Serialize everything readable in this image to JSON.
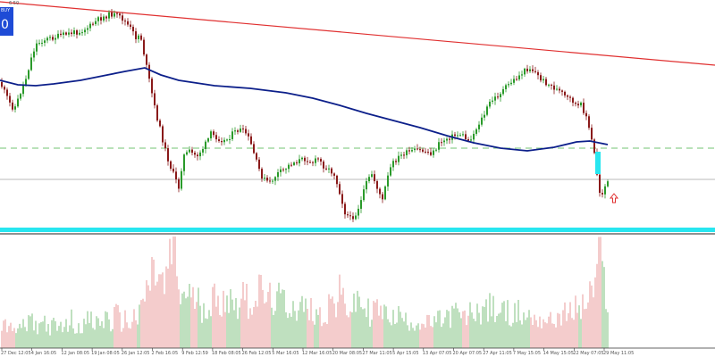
{
  "header": {
    "price_label": "6.50"
  },
  "trade_panel": {
    "label": "BUY",
    "value": "0"
  },
  "colors": {
    "bull": "#2a9a2a",
    "bear": "#8a1a1a",
    "trendline": "#e03030",
    "moving_average": "#0c1f8a",
    "dashed_level": "#8fcf8f",
    "flat_level": "#a0a0a0",
    "support_band": "#28e6f0",
    "volume_up": "#7fc07f",
    "volume_down": "#e89a9a",
    "arrow": "#e03030"
  },
  "icons": {
    "signal_arrow": "up-arrow-icon"
  },
  "chart_data": {
    "type": "candlestick",
    "title": "",
    "xlabel": "",
    "ylabel": "",
    "grid": false,
    "legend": "none",
    "x_tick_labels": [
      "27 Dec 12:05",
      "4 Jan 16:05",
      "12 Jan 08:05",
      "19 Jan 08:05",
      "26 Jan 12:05",
      "2 Feb 16:05",
      "9 Feb 12:59",
      "18 Feb 08:05",
      "26 Feb 12:05",
      "5 Mar 16:05",
      "12 Mar 16:05",
      "20 Mar 08:05",
      "27 Mar 11:05",
      "5 Apr 15:05",
      "13 Apr 07:05",
      "20 Apr 07:05",
      "27 Apr 11:05",
      "7 May 15:05",
      "14 May 15:05",
      "22 May 07:05",
      "29 May 11:05"
    ],
    "price_path": [
      [
        0,
        92
      ],
      [
        6,
        105
      ],
      [
        12,
        118
      ],
      [
        16,
        122
      ],
      [
        20,
        112
      ],
      [
        26,
        95
      ],
      [
        30,
        85
      ],
      [
        34,
        68
      ],
      [
        40,
        50
      ],
      [
        48,
        45
      ],
      [
        60,
        42
      ],
      [
        75,
        38
      ],
      [
        90,
        35
      ],
      [
        100,
        30
      ],
      [
        110,
        22
      ],
      [
        118,
        18
      ],
      [
        125,
        16
      ],
      [
        132,
        18
      ],
      [
        138,
        22
      ],
      [
        146,
        32
      ],
      [
        152,
        42
      ],
      [
        157,
        38
      ],
      [
        162,
        65
      ],
      [
        168,
        95
      ],
      [
        174,
        125
      ],
      [
        178,
        140
      ],
      [
        184,
        165
      ],
      [
        190,
        185
      ],
      [
        196,
        200
      ],
      [
        200,
        210
      ],
      [
        205,
        175
      ],
      [
        212,
        170
      ],
      [
        220,
        175
      ],
      [
        228,
        165
      ],
      [
        236,
        150
      ],
      [
        244,
        155
      ],
      [
        252,
        158
      ],
      [
        260,
        150
      ],
      [
        268,
        145
      ],
      [
        276,
        150
      ],
      [
        282,
        165
      ],
      [
        288,
        185
      ],
      [
        294,
        200
      ],
      [
        302,
        205
      ],
      [
        310,
        195
      ],
      [
        318,
        190
      ],
      [
        326,
        183
      ],
      [
        334,
        180
      ],
      [
        342,
        178
      ],
      [
        350,
        182
      ],
      [
        356,
        178
      ],
      [
        362,
        186
      ],
      [
        368,
        190
      ],
      [
        374,
        195
      ],
      [
        380,
        215
      ],
      [
        386,
        238
      ],
      [
        392,
        245
      ],
      [
        398,
        240
      ],
      [
        404,
        225
      ],
      [
        410,
        205
      ],
      [
        416,
        195
      ],
      [
        422,
        210
      ],
      [
        428,
        225
      ],
      [
        432,
        205
      ],
      [
        438,
        185
      ],
      [
        444,
        178
      ],
      [
        452,
        172
      ],
      [
        460,
        170
      ],
      [
        468,
        168
      ],
      [
        476,
        170
      ],
      [
        484,
        172
      ],
      [
        492,
        160
      ],
      [
        500,
        155
      ],
      [
        508,
        152
      ],
      [
        516,
        150
      ],
      [
        524,
        158
      ],
      [
        530,
        150
      ],
      [
        536,
        138
      ],
      [
        542,
        128
      ],
      [
        548,
        115
      ],
      [
        556,
        108
      ],
      [
        564,
        100
      ],
      [
        572,
        92
      ],
      [
        580,
        86
      ],
      [
        586,
        80
      ],
      [
        592,
        76
      ],
      [
        598,
        80
      ],
      [
        604,
        88
      ],
      [
        610,
        92
      ],
      [
        616,
        96
      ],
      [
        622,
        100
      ],
      [
        628,
        104
      ],
      [
        634,
        110
      ],
      [
        640,
        112
      ],
      [
        646,
        120
      ],
      [
        650,
        118
      ],
      [
        656,
        130
      ],
      [
        660,
        150
      ],
      [
        664,
        165
      ],
      [
        668,
        195
      ],
      [
        672,
        222
      ],
      [
        676,
        210
      ],
      [
        680,
        205
      ]
    ],
    "moving_average": [
      [
        0,
        90
      ],
      [
        20,
        95
      ],
      [
        40,
        96
      ],
      [
        60,
        94
      ],
      [
        90,
        90
      ],
      [
        120,
        84
      ],
      [
        140,
        80
      ],
      [
        162,
        76
      ],
      [
        180,
        84
      ],
      [
        200,
        90
      ],
      [
        240,
        96
      ],
      [
        280,
        99
      ],
      [
        320,
        104
      ],
      [
        350,
        110
      ],
      [
        380,
        118
      ],
      [
        410,
        127
      ],
      [
        440,
        135
      ],
      [
        470,
        143
      ],
      [
        500,
        152
      ],
      [
        530,
        160
      ],
      [
        560,
        166
      ],
      [
        590,
        169
      ],
      [
        620,
        165
      ],
      [
        645,
        159
      ],
      [
        660,
        158
      ],
      [
        680,
        162
      ]
    ],
    "volume": [
      [
        0,
        20
      ],
      [
        5,
        36
      ],
      [
        10,
        22
      ],
      [
        15,
        28
      ],
      [
        20,
        18
      ],
      [
        25,
        32
      ],
      [
        30,
        24
      ],
      [
        35,
        38
      ],
      [
        40,
        26
      ],
      [
        45,
        30
      ],
      [
        50,
        34
      ],
      [
        55,
        24
      ],
      [
        60,
        28
      ],
      [
        65,
        22
      ],
      [
        70,
        32
      ],
      [
        75,
        26
      ],
      [
        80,
        36
      ],
      [
        85,
        24
      ],
      [
        90,
        30
      ],
      [
        95,
        28
      ],
      [
        100,
        38
      ],
      [
        105,
        26
      ],
      [
        110,
        34
      ],
      [
        115,
        30
      ],
      [
        120,
        42
      ],
      [
        125,
        26
      ],
      [
        130,
        46
      ],
      [
        135,
        30
      ],
      [
        140,
        36
      ],
      [
        145,
        28
      ],
      [
        150,
        40
      ],
      [
        155,
        34
      ],
      [
        160,
        60
      ],
      [
        165,
        72
      ],
      [
        170,
        90
      ],
      [
        175,
        95
      ],
      [
        180,
        82
      ],
      [
        185,
        70
      ],
      [
        190,
        118
      ],
      [
        195,
        130
      ],
      [
        200,
        72
      ],
      [
        205,
        60
      ],
      [
        210,
        75
      ],
      [
        215,
        55
      ],
      [
        220,
        66
      ],
      [
        225,
        48
      ],
      [
        230,
        58
      ],
      [
        235,
        50
      ],
      [
        240,
        64
      ],
      [
        245,
        46
      ],
      [
        250,
        70
      ],
      [
        255,
        58
      ],
      [
        260,
        62
      ],
      [
        265,
        52
      ],
      [
        270,
        74
      ],
      [
        275,
        60
      ],
      [
        280,
        56
      ],
      [
        285,
        64
      ],
      [
        290,
        70
      ],
      [
        295,
        66
      ],
      [
        300,
        58
      ],
      [
        305,
        62
      ],
      [
        310,
        54
      ],
      [
        315,
        66
      ],
      [
        320,
        48
      ],
      [
        325,
        58
      ],
      [
        330,
        52
      ],
      [
        335,
        46
      ],
      [
        340,
        56
      ],
      [
        345,
        40
      ],
      [
        350,
        50
      ],
      [
        355,
        44
      ],
      [
        360,
        38
      ],
      [
        365,
        44
      ],
      [
        370,
        62
      ],
      [
        375,
        50
      ],
      [
        380,
        66
      ],
      [
        385,
        58
      ],
      [
        390,
        50
      ],
      [
        395,
        46
      ],
      [
        400,
        62
      ],
      [
        405,
        54
      ],
      [
        410,
        48
      ],
      [
        415,
        42
      ],
      [
        420,
        52
      ],
      [
        425,
        46
      ],
      [
        430,
        40
      ],
      [
        435,
        48
      ],
      [
        440,
        36
      ],
      [
        445,
        42
      ],
      [
        450,
        38
      ],
      [
        455,
        32
      ],
      [
        460,
        36
      ],
      [
        465,
        30
      ],
      [
        470,
        34
      ],
      [
        475,
        28
      ],
      [
        480,
        32
      ],
      [
        485,
        30
      ],
      [
        490,
        34
      ],
      [
        495,
        36
      ],
      [
        500,
        38
      ],
      [
        505,
        40
      ],
      [
        510,
        44
      ],
      [
        515,
        40
      ],
      [
        520,
        36
      ],
      [
        525,
        42
      ],
      [
        530,
        46
      ],
      [
        535,
        44
      ],
      [
        540,
        50
      ],
      [
        545,
        46
      ],
      [
        550,
        52
      ],
      [
        555,
        44
      ],
      [
        560,
        48
      ],
      [
        565,
        42
      ],
      [
        570,
        46
      ],
      [
        575,
        40
      ],
      [
        580,
        44
      ],
      [
        585,
        38
      ],
      [
        590,
        42
      ],
      [
        595,
        36
      ],
      [
        600,
        40
      ],
      [
        605,
        34
      ],
      [
        610,
        38
      ],
      [
        615,
        32
      ],
      [
        620,
        36
      ],
      [
        625,
        40
      ],
      [
        630,
        44
      ],
      [
        635,
        38
      ],
      [
        640,
        46
      ],
      [
        645,
        52
      ],
      [
        650,
        48
      ],
      [
        655,
        56
      ],
      [
        660,
        64
      ],
      [
        665,
        78
      ],
      [
        668,
        95
      ],
      [
        672,
        110
      ],
      [
        676,
        82
      ],
      [
        680,
        60
      ]
    ],
    "annotations": [
      {
        "type": "trendline",
        "from": [
          0,
          2
        ],
        "to": [
          800,
          73
        ]
      },
      {
        "type": "dashed_level",
        "y": 166
      },
      {
        "type": "flat_level",
        "y": 201
      },
      {
        "type": "support_band",
        "y": 258
      },
      {
        "type": "highlight_bar",
        "x": 669,
        "y_top": 170,
        "y_bottom": 195
      },
      {
        "type": "arrow_up",
        "x": 687,
        "y": 222
      }
    ]
  }
}
